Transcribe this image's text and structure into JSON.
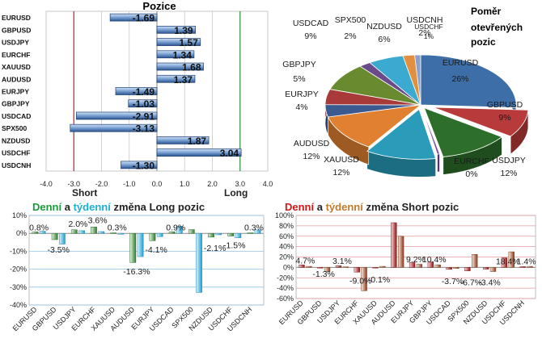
{
  "colors": {
    "long": "#2f8f3c",
    "short": "#c0202a",
    "daily_long": "#1a9a3a",
    "weekly_long": "#1ab0d8",
    "daily_short": "#d01818",
    "weekly_short": "#c47a2a"
  },
  "positions": {
    "title": "Pozice",
    "short_label": "Short",
    "long_label": "Long",
    "chart_data": {
      "type": "bar",
      "orientation": "horizontal",
      "categories": [
        "USDCNH",
        "USDCHF",
        "NZDUSD",
        "SPX500",
        "USDCAD",
        "GBPJPY",
        "EURJPY",
        "AUDUSD",
        "XAUUSD",
        "EURCHF",
        "USDJPY",
        "GBPUSD",
        "EURUSD"
      ],
      "values": [
        -1.3,
        3.04,
        1.87,
        -3.13,
        -2.91,
        -1.03,
        -1.49,
        1.37,
        1.68,
        1.34,
        1.57,
        1.39,
        -1.69
      ],
      "value_labels": [
        "-1.30",
        "3.04",
        "1.87",
        "-3.13",
        "-2.91",
        "-1.03",
        "-1.49",
        "1.37",
        "1.68",
        "1.34",
        "1.57",
        "1.39",
        "-1.69"
      ],
      "xlim": [
        -4.0,
        4.0
      ],
      "xticks": [
        "-4.0",
        "-3.0",
        "-2.0",
        "-1.0",
        "0.0",
        "1.0",
        "2.0",
        "3.0",
        "4.0"
      ],
      "xtick_values": [
        -4,
        -3,
        -2,
        -1,
        0,
        1,
        2,
        3,
        4
      ],
      "threshold_lines": [
        -3,
        3
      ]
    }
  },
  "ratio": {
    "title_lines": [
      "Poměr",
      "otevřených",
      "pozic"
    ],
    "chart_data": {
      "type": "pie",
      "slices": [
        {
          "label": "EURUSD",
          "value": 26,
          "pct": "26%",
          "color": "#3e6ea8"
        },
        {
          "label": "GBPUSD",
          "value": 9,
          "pct": "9%",
          "color": "#b83a3a"
        },
        {
          "label": "USDJPY",
          "value": 12,
          "pct": "12%",
          "color": "#2d6e2a"
        },
        {
          "label": "EURCHF",
          "value": 0.4,
          "pct": "0%",
          "color": "#7a4aa0"
        },
        {
          "label": "XAUUSD",
          "value": 12,
          "pct": "12%",
          "color": "#2a9cba"
        },
        {
          "label": "AUDUSD",
          "value": 12,
          "pct": "12%",
          "color": "#e08030"
        },
        {
          "label": "EURJPY",
          "value": 4,
          "pct": "4%",
          "color": "#3a5a90"
        },
        {
          "label": "GBPJPY",
          "value": 5,
          "pct": "5%",
          "color": "#a83a3a"
        },
        {
          "label": "USDCAD",
          "value": 9,
          "pct": "9%",
          "color": "#6a8a30"
        },
        {
          "label": "SPX500",
          "value": 2,
          "pct": "2%",
          "color": "#6a4a8a"
        },
        {
          "label": "NZDUSD",
          "value": 6,
          "pct": "6%",
          "color": "#3aaad0"
        },
        {
          "label": "USDCNH",
          "value": 2,
          "pct": "2%",
          "color": "#e09040"
        },
        {
          "label": "USDCHF",
          "value": 1,
          "pct": "1%",
          "color": "#8aa0c8"
        }
      ]
    }
  },
  "long_change": {
    "title_parts": [
      "Denní",
      " a ",
      "týdenní",
      " změna Long pozic"
    ],
    "chart_data": {
      "type": "bar",
      "categories": [
        "EURUSD",
        "GBPUSD",
        "USDJPY",
        "EURCHF",
        "XAUUSD",
        "AUDUSD",
        "EURJPY",
        "USDCAD",
        "SPX500",
        "NZDUSD",
        "USDCHF",
        "USDCNH"
      ],
      "series": [
        {
          "name": "Denní",
          "values": [
            0.8,
            -3.5,
            2.0,
            3.6,
            0.3,
            -16.3,
            -4.1,
            0.9,
            2.1,
            -2.1,
            -1.5,
            0.3
          ]
        },
        {
          "name": "týdenní",
          "values": [
            1.2,
            -6.0,
            1.5,
            1.0,
            -0.5,
            -13.0,
            -1.8,
            4.0,
            -33.0,
            -0.8,
            -2.5,
            2.0
          ]
        }
      ],
      "labels": [
        {
          "text": "0.8%",
          "cat": 0,
          "y": 3.5
        },
        {
          "text": "-3.5%",
          "cat": 1,
          "y": -9
        },
        {
          "text": "2.0%",
          "cat": 2,
          "y": 5.5
        },
        {
          "text": "3.6%",
          "cat": 3,
          "y": 7.5
        },
        {
          "text": "0.3%",
          "cat": 4,
          "y": 3.5
        },
        {
          "text": "-16.3%",
          "cat": 5,
          "y": -21
        },
        {
          "text": "-4.1%",
          "cat": 6,
          "y": -9
        },
        {
          "text": "0.9%",
          "cat": 7,
          "y": 3.5
        },
        {
          "text": "-2.1%",
          "cat": 9,
          "y": -8
        },
        {
          "text": "-1.5%",
          "cat": 10,
          "y": -6.5
        },
        {
          "text": "0.3%",
          "cat": 11,
          "y": 3.5
        }
      ],
      "ylim": [
        -40,
        10
      ],
      "yticks": [
        "10%",
        "0%",
        "-10%",
        "-20%",
        "-30%",
        "-40%"
      ],
      "ytick_values": [
        10,
        0,
        -10,
        -20,
        -30,
        -40
      ]
    }
  },
  "short_change": {
    "title_parts": [
      "Denní",
      " a ",
      "týdenní",
      " změna Short pozic"
    ],
    "chart_data": {
      "type": "bar",
      "categories": [
        "EURUSD",
        "GBPUSD",
        "USDJPY",
        "EURCHF",
        "XAUUSD",
        "AUDUSD",
        "EURJPY",
        "GBPJPY",
        "USDCAD",
        "SPX500",
        "NZDUSD",
        "USDCHF",
        "USDCNH"
      ],
      "series": [
        {
          "name": "Denní",
          "values": [
            4.7,
            -1.3,
            3.1,
            -9.0,
            -0.1,
            86.0,
            9.2,
            10.4,
            -3.7,
            -6.7,
            -3.4,
            18.4,
            1.4
          ]
        },
        {
          "name": "týdenní",
          "values": [
            2.0,
            -8.0,
            1.0,
            -45.0,
            2.0,
            60.0,
            6.0,
            5.0,
            -2.0,
            25.0,
            -8.0,
            30.0,
            2.0
          ]
        }
      ],
      "labels": [
        {
          "text": "4.7%",
          "cat": 0,
          "y": 14
        },
        {
          "text": "-1.3%",
          "cat": 1,
          "y": -12
        },
        {
          "text": "3.1%",
          "cat": 2,
          "y": 13
        },
        {
          "text": "-9.0%",
          "cat": 3,
          "y": -25
        },
        {
          "text": "-0.1%",
          "cat": 4,
          "y": -23
        },
        {
          "text": "9.2%",
          "cat": 6,
          "y": 16
        },
        {
          "text": "10.4%",
          "cat": 7,
          "y": 16
        },
        {
          "text": "-3.7%",
          "cat": 8,
          "y": -26
        },
        {
          "text": "-6.7%",
          "cat": 9,
          "y": -28
        },
        {
          "text": "-3.4%",
          "cat": 10,
          "y": -28
        },
        {
          "text": "18.4%",
          "cat": 11,
          "y": 12
        },
        {
          "text": "1.4%",
          "cat": 12,
          "y": 12
        }
      ],
      "ylim": [
        -60,
        100
      ],
      "yticks": [
        "100%",
        "80%",
        "60%",
        "40%",
        "20%",
        "0%",
        "-20%",
        "-40%",
        "-60%"
      ],
      "ytick_values": [
        100,
        80,
        60,
        40,
        20,
        0,
        -20,
        -40,
        -60
      ]
    }
  }
}
